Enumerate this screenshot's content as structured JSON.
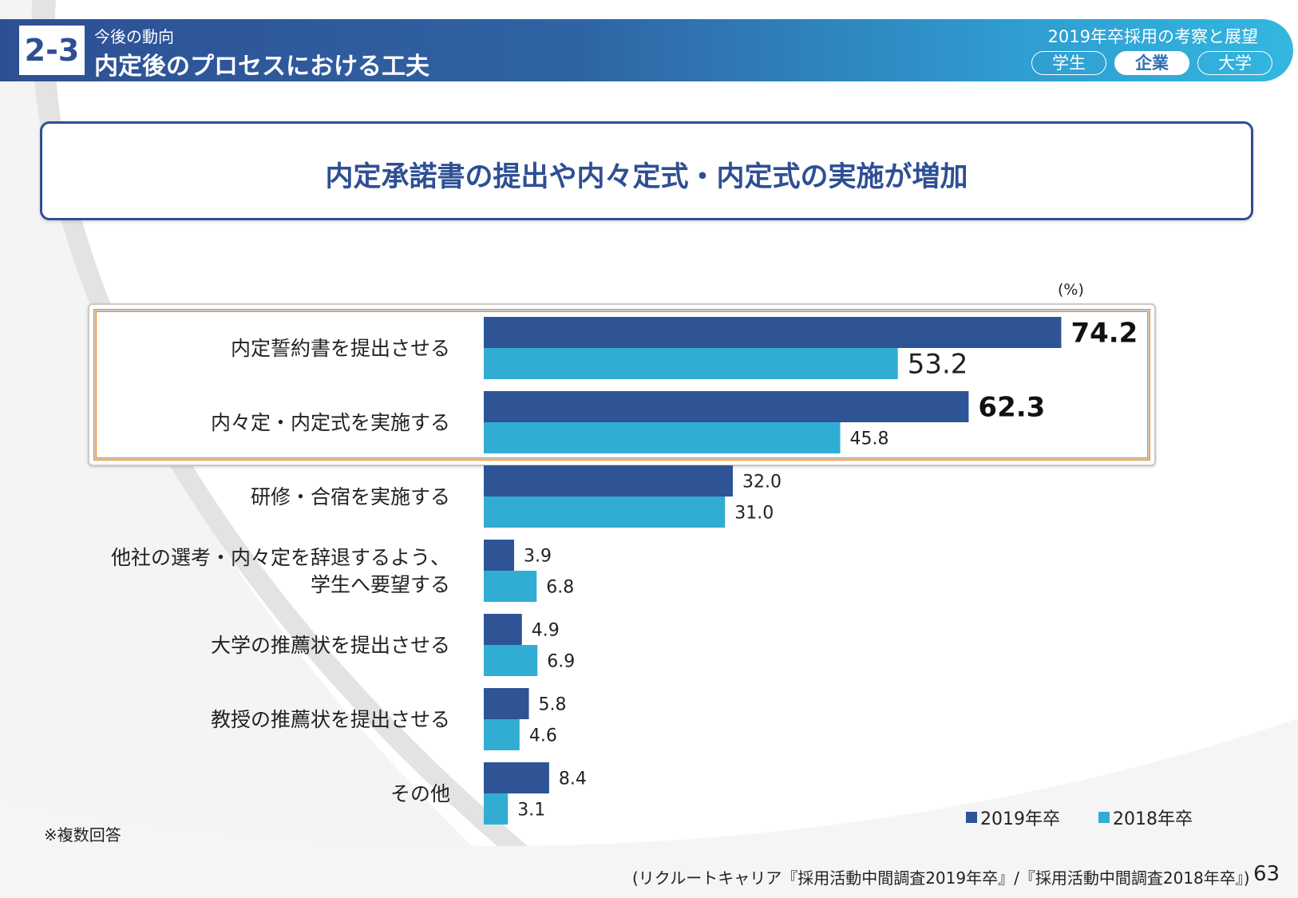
{
  "header": {
    "section_number": "2-3",
    "subtitle": "今後の動向",
    "title": "内定後のプロセスにおける工夫",
    "report_title": "2019年卒採用の考察と展望",
    "tabs": [
      {
        "label": "学生",
        "active": false
      },
      {
        "label": "企業",
        "active": true
      },
      {
        "label": "大学",
        "active": false
      }
    ]
  },
  "headline": "内定承諾書の提出や内々定式・内定式の実施が増加",
  "colors": {
    "series_2019": "#2e5496",
    "series_2018": "#31add4",
    "highlight_border": "#f08a2c",
    "brand": "#2e4f94"
  },
  "chart_data": {
    "type": "bar",
    "orientation": "horizontal",
    "unit_label": "(%)",
    "categories": [
      [
        "内定誓約書を提出させる"
      ],
      [
        "内々定・内定式を実施する"
      ],
      [
        "研修・合宿を実施する"
      ],
      [
        "他社の選考・内々定を辞退するよう、",
        "学生へ要望する"
      ],
      [
        "大学の推薦状を提出させる"
      ],
      [
        "教授の推薦状を提出させる"
      ],
      [
        "その他"
      ]
    ],
    "series": [
      {
        "name": "2019年卒",
        "values": [
          74.2,
          62.3,
          32.0,
          3.9,
          4.9,
          5.8,
          8.4
        ]
      },
      {
        "name": "2018年卒",
        "values": [
          53.2,
          45.8,
          31.0,
          6.8,
          6.9,
          4.6,
          3.1
        ]
      }
    ],
    "value_labels": [
      [
        "74.2",
        "62.3",
        "32.0",
        "3.9",
        "4.9",
        "5.8",
        "8.4"
      ],
      [
        "53.2",
        "45.8",
        "31.0",
        "6.8",
        "6.9",
        "4.6",
        "3.1"
      ]
    ],
    "highlighted_categories": [
      0,
      1
    ],
    "xlim": [
      0,
      80
    ],
    "legend_position": "bottom-right",
    "grid": false
  },
  "legend": [
    {
      "label": "2019年卒"
    },
    {
      "label": "2018年卒"
    }
  ],
  "note": "※複数回答",
  "source": "(リクルートキャリア『採用活動中間調査2019年卒』/『採用活動中間調査2018年卒』)",
  "page_number": "63"
}
